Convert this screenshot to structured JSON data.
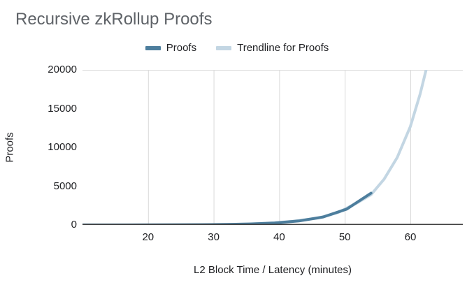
{
  "chart": {
    "title": "Recursive zkRollup Proofs",
    "xlabel": "L2 Block Time / Latency (minutes)",
    "ylabel": "Proofs"
  },
  "chart_data": {
    "type": "line",
    "title": "Recursive zkRollup Proofs",
    "xlabel": "L2 Block Time / Latency (minutes)",
    "ylabel": "Proofs",
    "xlim": [
      10,
      68
    ],
    "ylim": [
      0,
      20000
    ],
    "x_ticks": [
      20,
      30,
      40,
      50,
      60
    ],
    "y_ticks": [
      0,
      5000,
      10000,
      15000,
      20000
    ],
    "grid": "vertical-only-plus-top-border",
    "legend_position": "top-center",
    "colors": {
      "proofs_line": "#4d7e9d",
      "trendline": "#c3d6e3",
      "gridline": "#d9d9d9",
      "axis_line": "#424242",
      "title_text": "#5f6368",
      "tick_text": "#202124"
    },
    "series": [
      {
        "name": "Proofs",
        "color": "#4d7e9d",
        "points": [
          [
            10,
            1
          ],
          [
            13.7,
            2
          ],
          [
            17.3,
            4
          ],
          [
            21,
            8
          ],
          [
            24.7,
            16
          ],
          [
            28.3,
            32
          ],
          [
            32,
            64
          ],
          [
            35.7,
            128
          ],
          [
            39.3,
            256
          ],
          [
            43,
            512
          ],
          [
            46.7,
            1024
          ],
          [
            50.3,
            2048
          ],
          [
            54,
            4096
          ]
        ]
      },
      {
        "name": "Trendline for Proofs",
        "color": "#c3d6e3",
        "points": [
          [
            10,
            1
          ],
          [
            14,
            2
          ],
          [
            18,
            5
          ],
          [
            22,
            10
          ],
          [
            26,
            22
          ],
          [
            30,
            47
          ],
          [
            34,
            100
          ],
          [
            38,
            215
          ],
          [
            42,
            460
          ],
          [
            46,
            900
          ],
          [
            49,
            1600
          ],
          [
            52,
            2900
          ],
          [
            54,
            3900
          ],
          [
            56,
            5900
          ],
          [
            58,
            8700
          ],
          [
            60,
            12700
          ],
          [
            61.5,
            16900
          ],
          [
            62.4,
            20000
          ]
        ]
      }
    ]
  }
}
